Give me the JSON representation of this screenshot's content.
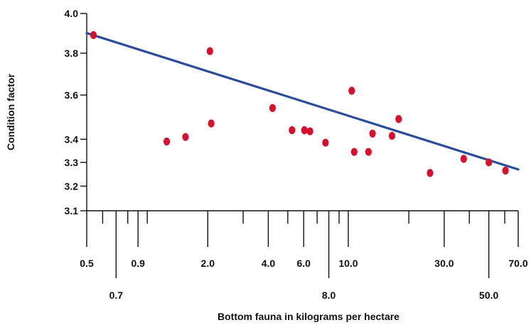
{
  "chart_data": {
    "type": "scatter",
    "xlabel": "Bottom fauna in kilograms per hectare",
    "ylabel": "Condition factor",
    "x_scale": "log",
    "y_scale": "log",
    "xlim": [
      0.5,
      70.0
    ],
    "ylim": [
      3.1,
      4.0
    ],
    "grid": false,
    "legend": "none",
    "x_ticks": [
      {
        "value": 0.5,
        "label": "0.5",
        "row": "upper"
      },
      {
        "value": 0.6,
        "label": "",
        "row": "none"
      },
      {
        "value": 0.7,
        "label": "0.7",
        "row": "lower"
      },
      {
        "value": 0.8,
        "label": "",
        "row": "none"
      },
      {
        "value": 0.9,
        "label": "0.9",
        "row": "upper"
      },
      {
        "value": 1.0,
        "label": "",
        "row": "none"
      },
      {
        "value": 2.0,
        "label": "2.0",
        "row": "upper"
      },
      {
        "value": 3.0,
        "label": "",
        "row": "none"
      },
      {
        "value": 4.0,
        "label": "4.0",
        "row": "upper"
      },
      {
        "value": 5.0,
        "label": "",
        "row": "none"
      },
      {
        "value": 6.0,
        "label": "6.0",
        "row": "upper"
      },
      {
        "value": 7.0,
        "label": "",
        "row": "none"
      },
      {
        "value": 8.0,
        "label": "8.0",
        "row": "lower"
      },
      {
        "value": 9.0,
        "label": "",
        "row": "none"
      },
      {
        "value": 10.0,
        "label": "10.0",
        "row": "upper"
      },
      {
        "value": 20.0,
        "label": "",
        "row": "none"
      },
      {
        "value": 30.0,
        "label": "30.0",
        "row": "upper"
      },
      {
        "value": 40.0,
        "label": "",
        "row": "none"
      },
      {
        "value": 50.0,
        "label": "50.0",
        "row": "lower"
      },
      {
        "value": 60.0,
        "label": "",
        "row": "none"
      },
      {
        "value": 70.0,
        "label": "70.0",
        "row": "upper"
      }
    ],
    "y_ticks": [
      {
        "value": 3.1,
        "label": "3.1"
      },
      {
        "value": 3.2,
        "label": "3.2"
      },
      {
        "value": 3.3,
        "label": "3.3"
      },
      {
        "value": 3.4,
        "label": "3.4"
      },
      {
        "value": 3.6,
        "label": "3.6"
      },
      {
        "value": 3.8,
        "label": "3.8"
      },
      {
        "value": 4.0,
        "label": "4.0"
      }
    ],
    "series": [
      {
        "type": "scatter",
        "color": "#d7102e",
        "points": [
          {
            "x": 0.54,
            "y": 3.89
          },
          {
            "x": 1.25,
            "y": 3.39
          },
          {
            "x": 1.55,
            "y": 3.41
          },
          {
            "x": 2.05,
            "y": 3.81
          },
          {
            "x": 2.08,
            "y": 3.47
          },
          {
            "x": 4.2,
            "y": 3.54
          },
          {
            "x": 5.25,
            "y": 3.44
          },
          {
            "x": 6.05,
            "y": 3.44
          },
          {
            "x": 6.45,
            "y": 3.435
          },
          {
            "x": 7.7,
            "y": 3.385
          },
          {
            "x": 10.4,
            "y": 3.62
          },
          {
            "x": 10.7,
            "y": 3.345
          },
          {
            "x": 12.6,
            "y": 3.345
          },
          {
            "x": 13.2,
            "y": 3.425
          },
          {
            "x": 16.5,
            "y": 3.415
          },
          {
            "x": 17.8,
            "y": 3.49
          },
          {
            "x": 25.5,
            "y": 3.255
          },
          {
            "x": 37.5,
            "y": 3.315
          },
          {
            "x": 50.0,
            "y": 3.3
          },
          {
            "x": 60.5,
            "y": 3.265
          }
        ]
      },
      {
        "type": "line",
        "color": "#2b4c9b",
        "points": [
          {
            "x": 0.5,
            "y": 3.9
          },
          {
            "x": 70.0,
            "y": 3.27
          }
        ]
      }
    ]
  }
}
